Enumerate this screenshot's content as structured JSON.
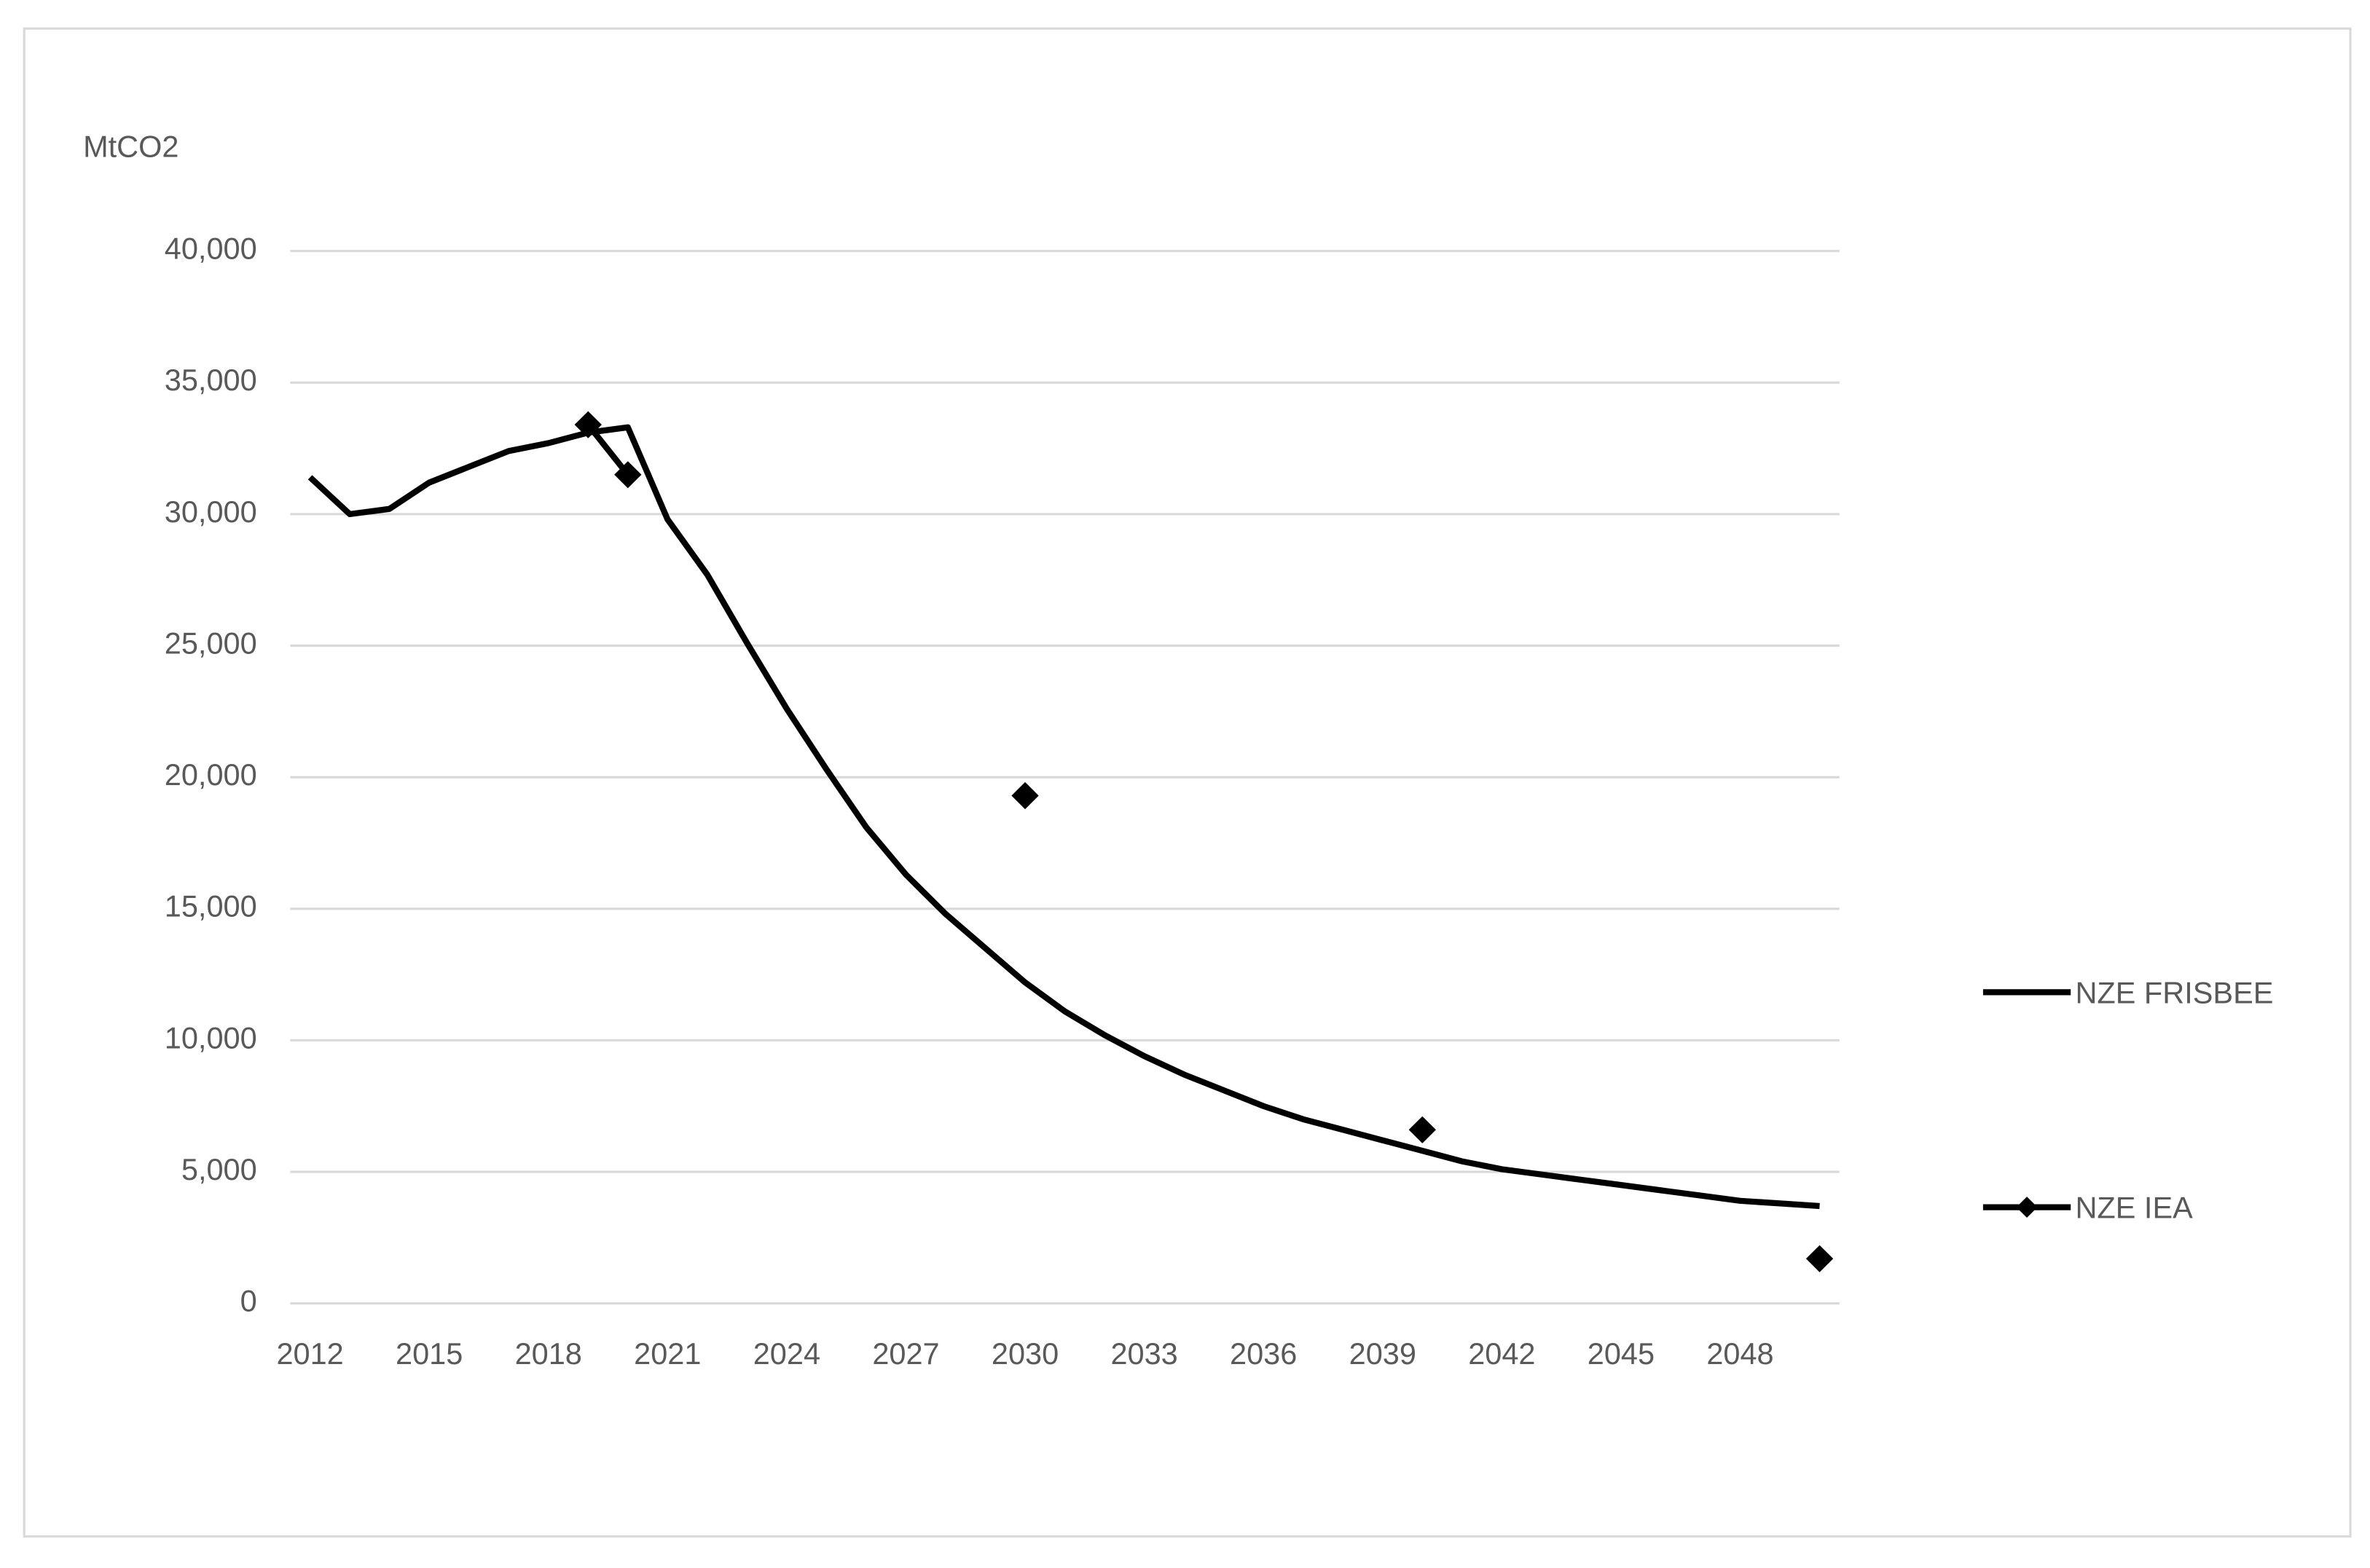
{
  "chart_data": {
    "type": "line",
    "y_label": "MtCO2",
    "x": [
      2012,
      2013,
      2014,
      2015,
      2016,
      2017,
      2018,
      2019,
      2020,
      2021,
      2022,
      2023,
      2024,
      2025,
      2026,
      2027,
      2028,
      2029,
      2030,
      2031,
      2032,
      2033,
      2034,
      2035,
      2036,
      2037,
      2038,
      2039,
      2040,
      2041,
      2042,
      2043,
      2044,
      2045,
      2046,
      2047,
      2048,
      2049,
      2050
    ],
    "xlim": [
      2011.5,
      2050.5
    ],
    "xticks": [
      2012,
      2015,
      2018,
      2021,
      2024,
      2027,
      2030,
      2033,
      2036,
      2039,
      2042,
      2045,
      2048
    ],
    "ylim": [
      0,
      40000
    ],
    "yticks": [
      0,
      {
        "value": 5000,
        "label": "5,000"
      },
      {
        "value": 10000,
        "label": "10,000"
      },
      {
        "value": 15000,
        "label": "15,000"
      },
      {
        "value": 20000,
        "label": "20,000"
      },
      {
        "value": 25000,
        "label": "25,000"
      },
      {
        "value": 30000,
        "label": "30,000"
      },
      {
        "value": 35000,
        "label": "35,000"
      },
      {
        "value": 40000,
        "label": "40,000"
      }
    ],
    "grid": true,
    "legend_position": "right",
    "series": [
      {
        "name": "NZE FRISBEE",
        "color": "#000000",
        "marker": "none",
        "values": [
          31400,
          30000,
          30200,
          31200,
          31800,
          32400,
          32700,
          33100,
          33300,
          29800,
          27700,
          25100,
          22600,
          20300,
          18100,
          16300,
          14800,
          13500,
          12200,
          11100,
          10200,
          9400,
          8700,
          8100,
          7500,
          7000,
          6600,
          6200,
          5800,
          5400,
          5100,
          4900,
          4700,
          4500,
          4300,
          4100,
          3900,
          3800,
          3700
        ]
      },
      {
        "name": "NZE IEA",
        "color": "#000000",
        "marker": "diamond",
        "values": [
          null,
          null,
          null,
          null,
          null,
          null,
          null,
          33400,
          31500,
          null,
          null,
          null,
          null,
          null,
          null,
          null,
          null,
          null,
          19300,
          null,
          null,
          null,
          null,
          null,
          null,
          null,
          null,
          null,
          6600,
          null,
          null,
          null,
          null,
          null,
          null,
          null,
          null,
          null,
          1700
        ]
      }
    ]
  }
}
